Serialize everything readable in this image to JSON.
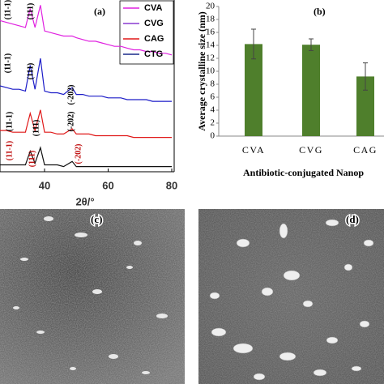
{
  "chart_data": [
    {
      "type": "line",
      "label": "(a)",
      "x_label": "2θ/°",
      "x": [
        26,
        28,
        30,
        32,
        34,
        35.5,
        37,
        38.7,
        40,
        42,
        44,
        46,
        48.7,
        50,
        52,
        54,
        56,
        58,
        60,
        62,
        64,
        66,
        68,
        70,
        72,
        74,
        76,
        78,
        80
      ],
      "xlim": [
        26,
        80
      ],
      "xticks": [
        40,
        60,
        80
      ],
      "ylim": [
        0,
        100
      ],
      "series": [
        {
          "name": "CVA",
          "color": "#e020e0",
          "line_color": "#e020e0",
          "values": [
            88,
            87,
            86,
            85,
            84,
            95,
            84,
            97,
            82,
            81,
            80,
            79,
            79,
            78,
            77,
            76,
            76,
            75,
            74,
            73,
            73,
            72,
            71,
            71,
            70,
            70,
            69,
            69,
            68
          ]
        },
        {
          "name": "CVG",
          "color": "#8a3ad0",
          "line_color": "#1c1cc8",
          "values": [
            50,
            49,
            48,
            48,
            47,
            62,
            48,
            66,
            47,
            46,
            46,
            45,
            49,
            45,
            45,
            44,
            44,
            44,
            43,
            43,
            43,
            42,
            42,
            42,
            42,
            41,
            41,
            41,
            41
          ]
        },
        {
          "name": "CAG",
          "color": "#e01818",
          "line_color": "#e01818",
          "values": [
            24,
            24,
            23,
            23,
            23,
            34,
            24,
            36,
            23,
            23,
            22,
            22,
            25,
            22,
            22,
            22,
            21,
            21,
            21,
            21,
            21,
            21,
            20,
            20,
            20,
            20,
            20,
            20,
            20
          ]
        },
        {
          "name": "CTG",
          "color": "#1a2a8a",
          "line_color": "#111111",
          "values": [
            4,
            4,
            4,
            4,
            4,
            12,
            5,
            14,
            4,
            4,
            4,
            3,
            6,
            3,
            3,
            3,
            3,
            3,
            3,
            3,
            3,
            3,
            3,
            3,
            3,
            3,
            3,
            3,
            3
          ]
        }
      ],
      "annotations": [
        "(11-1)",
        "(111)",
        "(11-1)",
        "(111)",
        "(-202)",
        "(11-1)",
        "(111)",
        "(-202)",
        "(11-1)",
        "(111)",
        "(-202)"
      ]
    },
    {
      "type": "bar",
      "label": "(b)",
      "y_label": "Average crystalline size (nm)",
      "x_label": "Antibiotic-conjugated Nanop",
      "categories": [
        "CVA",
        "CVG",
        "CAG"
      ],
      "values": [
        14.2,
        14.1,
        9.2
      ],
      "errors": [
        2.3,
        0.9,
        2.1
      ],
      "color": "#4f7f2c",
      "ylim": [
        0,
        20
      ],
      "yticks": [
        0,
        2,
        4,
        6,
        8,
        10,
        12,
        14,
        16,
        18,
        20
      ]
    }
  ],
  "images": [
    {
      "label": "(c)"
    },
    {
      "label": "(d)"
    }
  ]
}
